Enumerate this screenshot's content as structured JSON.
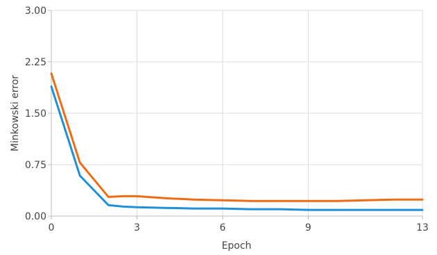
{
  "chart_data": {
    "type": "line",
    "title": "",
    "xlabel": "Epoch",
    "ylabel": "Minkowski error",
    "xlim": [
      0,
      13
    ],
    "ylim": [
      0,
      3
    ],
    "x_ticks": [
      0,
      3,
      6,
      9,
      13
    ],
    "x_tick_labels": [
      "0",
      "3",
      "6",
      "9",
      "13"
    ],
    "y_ticks": [
      0,
      0.75,
      1.5,
      2.25,
      3
    ],
    "y_tick_labels": [
      "0.00",
      "0.75",
      "1.50",
      "2.25",
      "3.00"
    ],
    "grid": true,
    "legend": "none",
    "series": [
      {
        "color": "#ef6c14",
        "x": [
          0,
          1,
          2,
          2.5,
          3,
          4,
          5,
          6,
          7,
          8,
          9,
          10,
          11,
          12,
          13
        ],
        "y": [
          2.08,
          0.78,
          0.28,
          0.29,
          0.29,
          0.26,
          0.24,
          0.23,
          0.22,
          0.22,
          0.22,
          0.22,
          0.23,
          0.24,
          0.24
        ]
      },
      {
        "color": "#1e90d8",
        "x": [
          0,
          1,
          2,
          2.5,
          3,
          4,
          5,
          6,
          7,
          8,
          9,
          10,
          11,
          12,
          13
        ],
        "y": [
          1.89,
          0.59,
          0.16,
          0.14,
          0.13,
          0.12,
          0.11,
          0.11,
          0.1,
          0.1,
          0.09,
          0.09,
          0.09,
          0.09,
          0.09
        ]
      }
    ]
  }
}
